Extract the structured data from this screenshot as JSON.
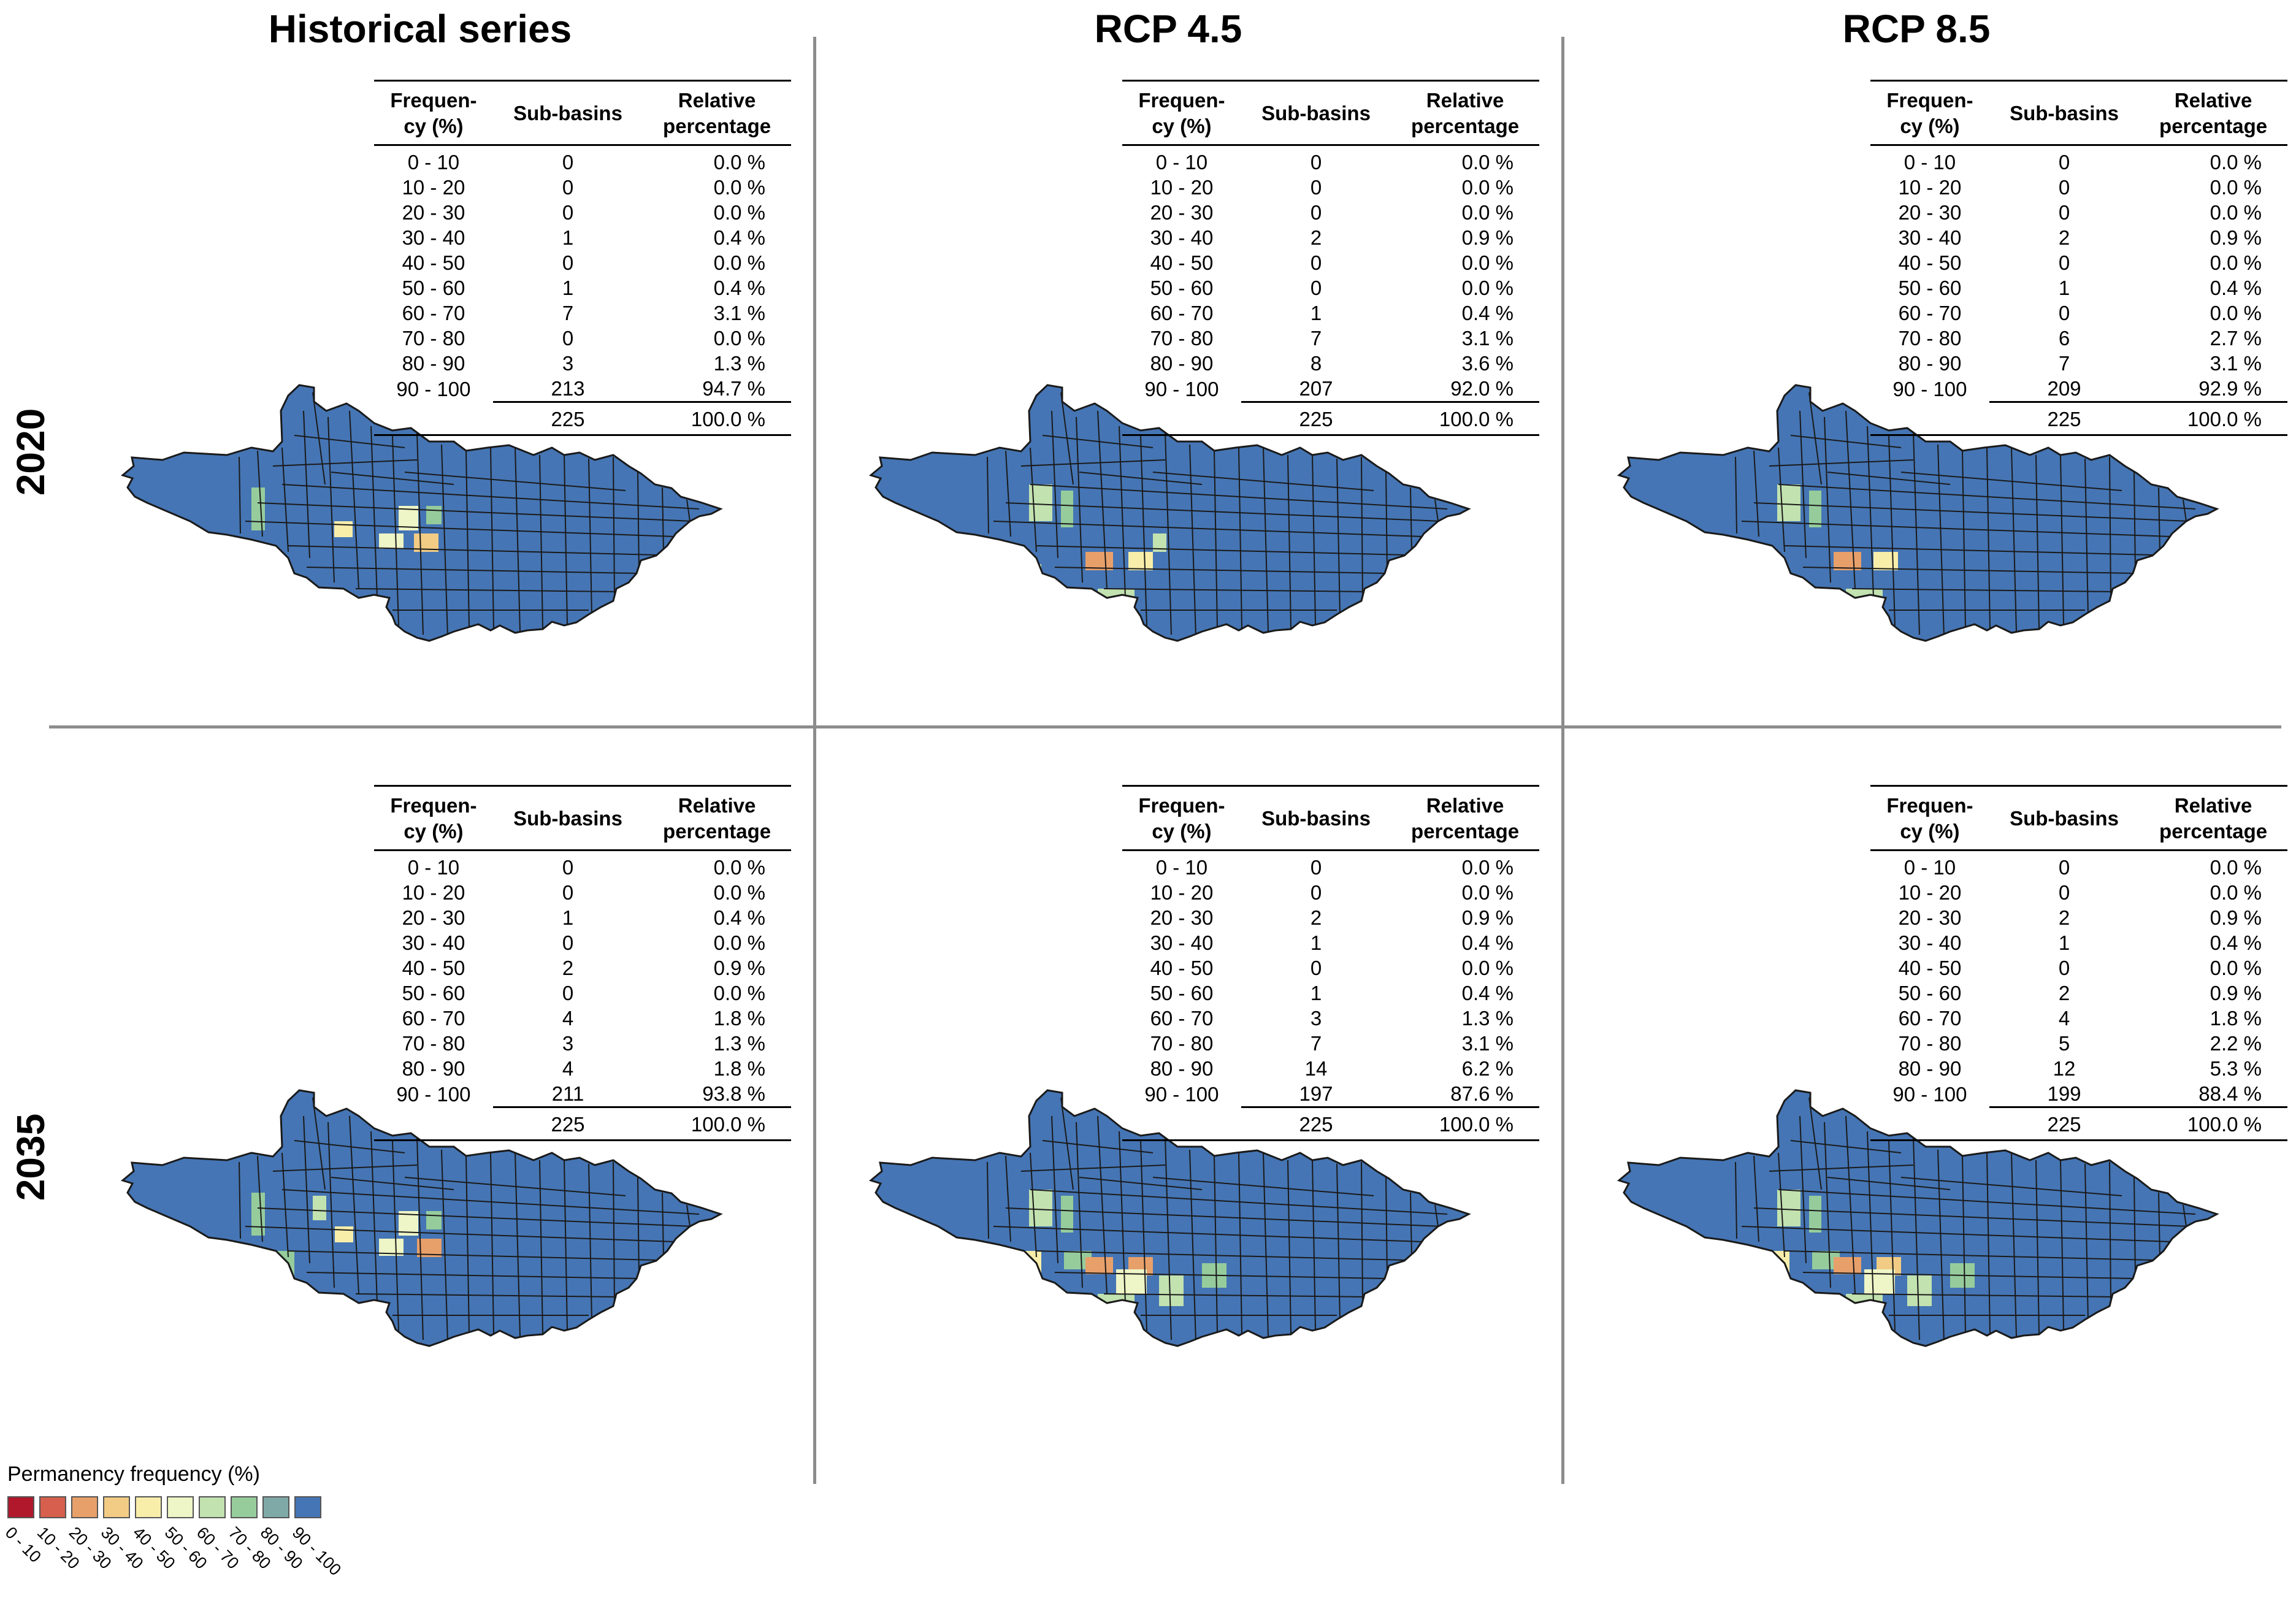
{
  "columns": [
    "Historical series",
    "RCP 4.5",
    "RCP 8.5"
  ],
  "rows": [
    "2020",
    "2035"
  ],
  "table_header": {
    "frequency": "Frequen-\ncy (%)",
    "subbasins": "Sub-basins",
    "relative": "Relative\npercentage"
  },
  "legend": {
    "title": "Permanency frequency (%)",
    "classes": [
      "0 - 10",
      "10 - 20",
      "20 - 30",
      "30 - 40",
      "40 - 50",
      "50 - 60",
      "60 - 70",
      "70 - 80",
      "80 - 90",
      "90 - 100"
    ],
    "colors": [
      "#b2182b",
      "#d6604d",
      "#e8a06a",
      "#f2cc84",
      "#f8eeaa",
      "#eef5c6",
      "#c2e2b0",
      "#96cc9c",
      "#7fa9a6",
      "#4575b4"
    ]
  },
  "panels": [
    {
      "name": "historical-2020",
      "counts": [
        "0",
        "0",
        "0",
        "1",
        "0",
        "1",
        "7",
        "0",
        "3",
        "213"
      ],
      "percents": [
        "0.0 %",
        "0.0 %",
        "0.0 %",
        "0.4 %",
        "0.0 %",
        "0.4 %",
        "3.1 %",
        "0.0 %",
        "1.3 %",
        "94.7 %"
      ],
      "total": "225",
      "total_pct": "100.0 %"
    },
    {
      "name": "rcp45-2020",
      "counts": [
        "0",
        "0",
        "0",
        "2",
        "0",
        "0",
        "1",
        "7",
        "8",
        "207"
      ],
      "percents": [
        "0.0 %",
        "0.0 %",
        "0.0 %",
        "0.9 %",
        "0.0 %",
        "0.0 %",
        "0.4 %",
        "3.1 %",
        "3.6 %",
        "92.0 %"
      ],
      "total": "225",
      "total_pct": "100.0 %"
    },
    {
      "name": "rcp85-2020",
      "counts": [
        "0",
        "0",
        "0",
        "2",
        "0",
        "1",
        "0",
        "6",
        "7",
        "209"
      ],
      "percents": [
        "0.0 %",
        "0.0 %",
        "0.0 %",
        "0.9 %",
        "0.0 %",
        "0.4 %",
        "0.0 %",
        "2.7 %",
        "3.1 %",
        "92.9 %"
      ],
      "total": "225",
      "total_pct": "100.0 %"
    },
    {
      "name": "historical-2035",
      "counts": [
        "0",
        "0",
        "1",
        "0",
        "2",
        "0",
        "4",
        "3",
        "4",
        "211"
      ],
      "percents": [
        "0.0 %",
        "0.0 %",
        "0.4 %",
        "0.0 %",
        "0.9 %",
        "0.0 %",
        "1.8 %",
        "1.3 %",
        "1.8 %",
        "93.8 %"
      ],
      "total": "225",
      "total_pct": "100.0 %"
    },
    {
      "name": "rcp45-2035",
      "counts": [
        "0",
        "0",
        "2",
        "1",
        "0",
        "1",
        "3",
        "7",
        "14",
        "197"
      ],
      "percents": [
        "0.0 %",
        "0.0 %",
        "0.9 %",
        "0.4 %",
        "0.0 %",
        "0.4 %",
        "1.3 %",
        "3.1 %",
        "6.2 %",
        "87.6 %"
      ],
      "total": "225",
      "total_pct": "100.0 %"
    },
    {
      "name": "rcp85-2035",
      "counts": [
        "0",
        "0",
        "2",
        "1",
        "0",
        "2",
        "4",
        "5",
        "12",
        "199"
      ],
      "percents": [
        "0.0 %",
        "0.0 %",
        "0.9 %",
        "0.4 %",
        "0.0 %",
        "0.9 %",
        "1.8 %",
        "2.2 %",
        "5.3 %",
        "88.4 %"
      ],
      "total": "225",
      "total_pct": "100.0 %"
    }
  ]
}
